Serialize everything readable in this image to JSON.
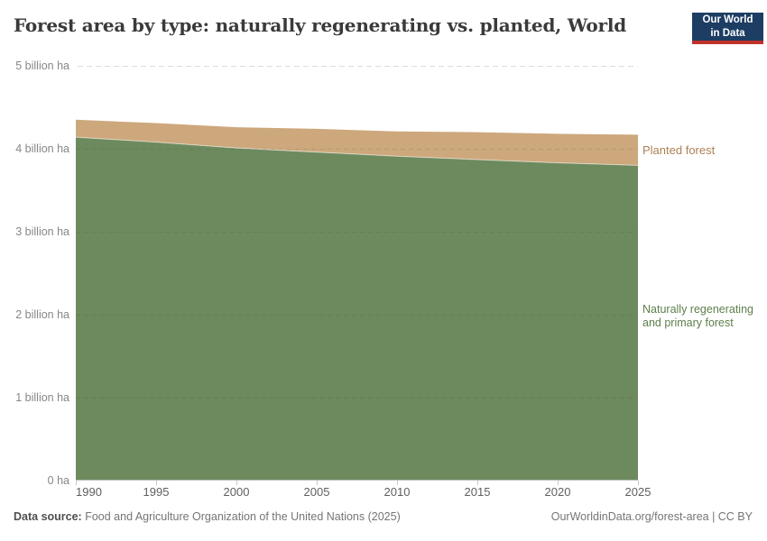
{
  "header": {
    "title": "Forest area by type: naturally regenerating vs. planted, World",
    "logo": {
      "line1": "Our World",
      "line2": "in Data",
      "bg_color": "#1d3d63",
      "bar_color": "#bf3129"
    }
  },
  "chart_data": {
    "type": "area",
    "stacked": true,
    "title": "Forest area by type: naturally regenerating vs. planted, World",
    "unit": "billion ha",
    "x": [
      1990,
      1995,
      2000,
      2005,
      2010,
      2015,
      2020,
      2025
    ],
    "xlim": [
      1990,
      2025
    ],
    "ylim": [
      0,
      5
    ],
    "grid": "dashed-horizontal",
    "legend_position": "right",
    "series": [
      {
        "name": "Naturally regenerating and primary forest",
        "color": "#6d8a5e",
        "label_color": "#5d7f4b",
        "values": [
          4.14,
          4.08,
          4.01,
          3.96,
          3.91,
          3.87,
          3.83,
          3.8
        ]
      },
      {
        "name": "Planted forest",
        "color": "#cda87d",
        "label_color": "#ad8156",
        "values": [
          0.21,
          0.23,
          0.25,
          0.28,
          0.3,
          0.33,
          0.35,
          0.37
        ]
      }
    ],
    "totals": [
      4.35,
      4.31,
      4.26,
      4.24,
      4.21,
      4.2,
      4.18,
      4.17
    ],
    "yticks": [
      {
        "value": 5,
        "label": "5 billion ha"
      },
      {
        "value": 4,
        "label": "4 billion ha"
      },
      {
        "value": 3,
        "label": "3 billion ha"
      },
      {
        "value": 2,
        "label": "2 billion ha"
      },
      {
        "value": 1,
        "label": "1 billion ha"
      },
      {
        "value": 0,
        "label": "0 ha"
      }
    ],
    "xticks": [
      1990,
      1995,
      2000,
      2005,
      2010,
      2015,
      2020,
      2025
    ]
  },
  "legend": {
    "planted": "Planted forest",
    "natural": "Naturally regenerating and primary forest"
  },
  "footer": {
    "source_label": "Data source:",
    "source_text": "Food and Agriculture Organization of the United Nations (2025)",
    "link_text": "OurWorldinData.org/forest-area | CC BY"
  }
}
